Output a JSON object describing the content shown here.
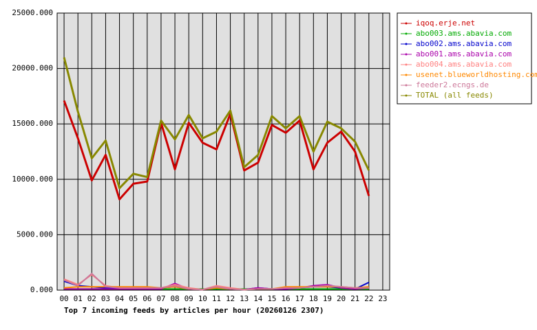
{
  "chart_data": {
    "type": "line",
    "title": "Top 7 incoming feeds by articles per hour (20260126 2307)",
    "categories": [
      "00",
      "01",
      "02",
      "03",
      "04",
      "05",
      "06",
      "07",
      "08",
      "09",
      "10",
      "11",
      "12",
      "13",
      "14",
      "15",
      "16",
      "17",
      "18",
      "19",
      "20",
      "21",
      "22",
      "23"
    ],
    "ylim": [
      0,
      25000
    ],
    "yticks": [
      {
        "value": 0,
        "label": "0.000"
      },
      {
        "value": 5000,
        "label": "5000.000"
      },
      {
        "value": 10000,
        "label": "10000.000"
      },
      {
        "value": 15000,
        "label": "15000.000"
      },
      {
        "value": 20000,
        "label": "20000.000"
      },
      {
        "value": 25000,
        "label": "25000.000"
      }
    ],
    "grid": true,
    "legend": "right",
    "series": [
      {
        "name": "iqoq.erje.net",
        "color": "#cc0000",
        "values": [
          17100,
          13700,
          9900,
          12200,
          8200,
          9600,
          9800,
          15100,
          10900,
          15100,
          13300,
          12700,
          15900,
          10800,
          11500,
          14900,
          14200,
          15300,
          10900,
          13300,
          14300,
          12500,
          8500,
          null
        ]
      },
      {
        "name": "abo003.ams.abavia.com",
        "color": "#00aa00",
        "values": [
          100,
          100,
          100,
          100,
          100,
          100,
          100,
          100,
          100,
          100,
          100,
          100,
          100,
          100,
          100,
          100,
          100,
          100,
          100,
          100,
          100,
          100,
          100,
          null
        ]
      },
      {
        "name": "abo002.ams.abavia.com",
        "color": "#0000cc",
        "values": [
          800,
          400,
          300,
          200,
          200,
          200,
          200,
          200,
          300,
          100,
          50,
          200,
          100,
          50,
          200,
          100,
          100,
          200,
          300,
          300,
          200,
          100,
          700,
          null
        ]
      },
      {
        "name": "abo001.ams.abavia.com",
        "color": "#aa00aa",
        "values": [
          100,
          100,
          100,
          100,
          100,
          100,
          100,
          100,
          600,
          100,
          50,
          300,
          100,
          50,
          200,
          100,
          100,
          200,
          400,
          500,
          200,
          100,
          200,
          null
        ]
      },
      {
        "name": "abo004.ams.abavia.com",
        "color": "#ff8080",
        "values": [
          1000,
          500,
          1400,
          400,
          200,
          200,
          200,
          200,
          500,
          200,
          50,
          400,
          200,
          50,
          100,
          100,
          200,
          200,
          300,
          400,
          300,
          200,
          200,
          null
        ]
      },
      {
        "name": "usenet.blueworldhosting.com",
        "color": "#ff8800",
        "values": [
          200,
          300,
          300,
          300,
          300,
          300,
          300,
          200,
          300,
          100,
          50,
          200,
          100,
          50,
          100,
          100,
          300,
          300,
          300,
          300,
          300,
          200,
          300,
          null
        ]
      },
      {
        "name": "feeder2.ecngs.de",
        "color": "#cc7799",
        "values": [
          900,
          400,
          1500,
          300,
          200,
          200,
          200,
          200,
          400,
          100,
          50,
          300,
          100,
          50,
          100,
          100,
          200,
          200,
          300,
          400,
          300,
          200,
          200,
          null
        ]
      },
      {
        "name": "TOTAL (all feeds)",
        "color": "#888800",
        "values": [
          21000,
          16100,
          11900,
          13500,
          9200,
          10500,
          10200,
          15300,
          13600,
          15800,
          13700,
          14300,
          16200,
          11100,
          12200,
          15700,
          14600,
          15700,
          12500,
          15200,
          14600,
          13400,
          10800,
          null
        ]
      }
    ]
  }
}
